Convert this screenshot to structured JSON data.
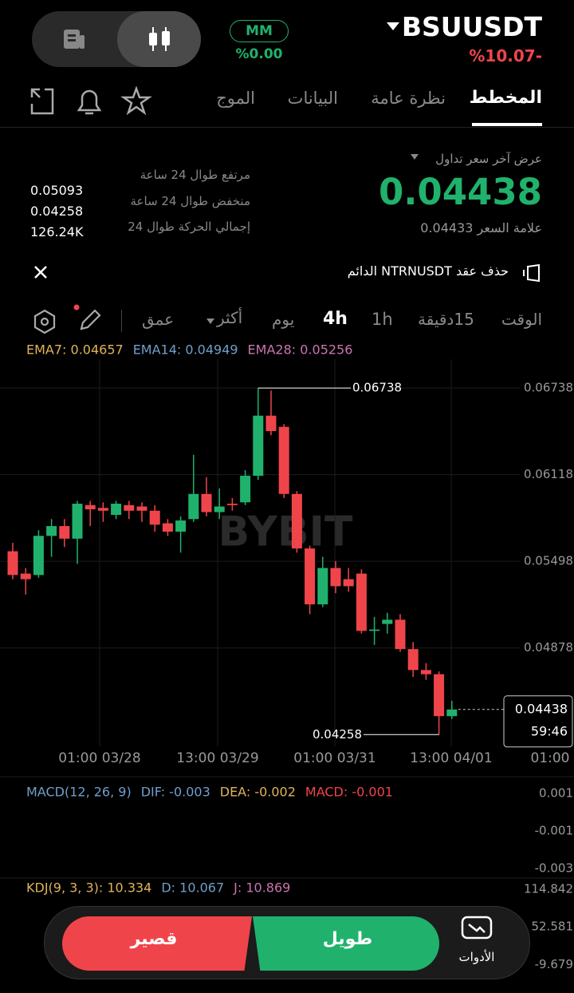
{
  "header": {
    "symbol": "BSUUSDT",
    "change": "%10.07-",
    "mm": "MM",
    "mm_value": "%0.00"
  },
  "tabs": [
    "المخطط",
    "نظرة عامة",
    "البيانات",
    "الموج"
  ],
  "stats": {
    "last_price_caption": "عرض آخر سعر تداول",
    "last_price": "0.04438",
    "mark_price": "علامة السعر 0.04433",
    "labels": [
      "مرتفع طوال 24 ساعة",
      "منخفض طوال 24 ساعة",
      "إجمالي الحركة طوال 24"
    ],
    "values": [
      "0.05093",
      "0.04258",
      "126.24K"
    ]
  },
  "notice": "حذف عقد NTRNUSDT الدائم",
  "toolbar": {
    "time": "الوقت",
    "intervals": [
      "15دقيقة",
      "1h",
      "4h",
      "يوم"
    ],
    "more": "أكثر",
    "depth": "عمق"
  },
  "chart_data": {
    "type": "candlestick",
    "watermark": "BYBIT",
    "legend": [
      {
        "text": "EMA7: 0.04657",
        "color": "#e0b45a"
      },
      {
        "text": "EMA14: 0.04949",
        "color": "#6f9fcb"
      },
      {
        "text": "EMA28: 0.05256",
        "color": "#c975b0"
      }
    ],
    "up_color": "#20b26c",
    "down_color": "#ef454a",
    "candles": [
      [
        0.0557,
        0.0563,
        0.0537,
        0.054
      ],
      [
        0.0541,
        0.0545,
        0.0526,
        0.0537
      ],
      [
        0.054,
        0.0572,
        0.0538,
        0.0568
      ],
      [
        0.0568,
        0.058,
        0.0553,
        0.0575
      ],
      [
        0.0575,
        0.058,
        0.056,
        0.0566
      ],
      [
        0.0566,
        0.0593,
        0.0548,
        0.0591
      ],
      [
        0.059,
        0.0593,
        0.0575,
        0.0587
      ],
      [
        0.0588,
        0.0592,
        0.0578,
        0.0586
      ],
      [
        0.0583,
        0.0593,
        0.058,
        0.0591
      ],
      [
        0.059,
        0.0593,
        0.058,
        0.0586
      ],
      [
        0.0589,
        0.0592,
        0.0578,
        0.0586
      ],
      [
        0.0586,
        0.059,
        0.0571,
        0.0576
      ],
      [
        0.0577,
        0.058,
        0.0568,
        0.0571
      ],
      [
        0.0571,
        0.0582,
        0.0556,
        0.0579
      ],
      [
        0.058,
        0.0626,
        0.0578,
        0.0598
      ],
      [
        0.0598,
        0.061,
        0.0582,
        0.0585
      ],
      [
        0.0585,
        0.0602,
        0.058,
        0.0589
      ],
      [
        0.0591,
        0.0595,
        0.0586,
        0.059
      ],
      [
        0.0592,
        0.0615,
        0.059,
        0.0611
      ],
      [
        0.0611,
        0.06738,
        0.0608,
        0.0654
      ],
      [
        0.0654,
        0.0672,
        0.064,
        0.0643
      ],
      [
        0.0646,
        0.0648,
        0.0595,
        0.0598
      ],
      [
        0.0598,
        0.06,
        0.0556,
        0.0559
      ],
      [
        0.0559,
        0.0561,
        0.0512,
        0.0519
      ],
      [
        0.0519,
        0.0553,
        0.0517,
        0.0545
      ],
      [
        0.0545,
        0.055,
        0.0527,
        0.0532
      ],
      [
        0.0537,
        0.0545,
        0.0528,
        0.0532
      ],
      [
        0.0541,
        0.0544,
        0.0498,
        0.05
      ],
      [
        0.05,
        0.051,
        0.049,
        0.0501
      ],
      [
        0.0505,
        0.0513,
        0.0498,
        0.0508
      ],
      [
        0.0508,
        0.0512,
        0.0485,
        0.0487
      ],
      [
        0.0487,
        0.0492,
        0.0467,
        0.0472
      ],
      [
        0.0472,
        0.0477,
        0.0465,
        0.0469
      ],
      [
        0.0469,
        0.0471,
        0.04258,
        0.0439
      ],
      [
        0.0439,
        0.045,
        0.0437,
        0.04438
      ]
    ],
    "countdown": "59:46",
    "ylim": [
      0.04174,
      0.06944
    ],
    "yticks": [
      0.06738,
      0.06118,
      0.05498,
      0.04878
    ],
    "x_labels": [
      "01:00 03/28",
      "13:00 03/29",
      "01:00 03/31",
      "13:00 04/01",
      "01:00"
    ],
    "macd": {
      "labels": [
        {
          "text": "MACD(12, 26, 9)",
          "color": "#6f9fcb"
        },
        {
          "text": "DIF: -0.003",
          "color": "#6f9fcb"
        },
        {
          "text": "DEA: -0.002",
          "color": "#e0b45a"
        },
        {
          "text": "MACD: -0.001",
          "color": "#ef454a"
        }
      ],
      "ylim": [
        -0.00351,
        0.00181
      ],
      "yticks": [
        0.001,
        -0.001,
        -0.003
      ]
    },
    "kdj": {
      "labels": [
        {
          "text": "KDJ(9, 3, 3): 10.334",
          "color": "#e0b45a"
        },
        {
          "text": "D: 10.067",
          "color": "#6f9fcb"
        },
        {
          "text": "J: 10.869",
          "color": "#c975b0"
        }
      ],
      "ylim": [
        -56.4,
        133.0
      ],
      "yticks": [
        114.842,
        52.581,
        -9.679
      ]
    }
  },
  "actions": {
    "short": "قصير",
    "long": "طويل",
    "tools": "الأدوات"
  }
}
